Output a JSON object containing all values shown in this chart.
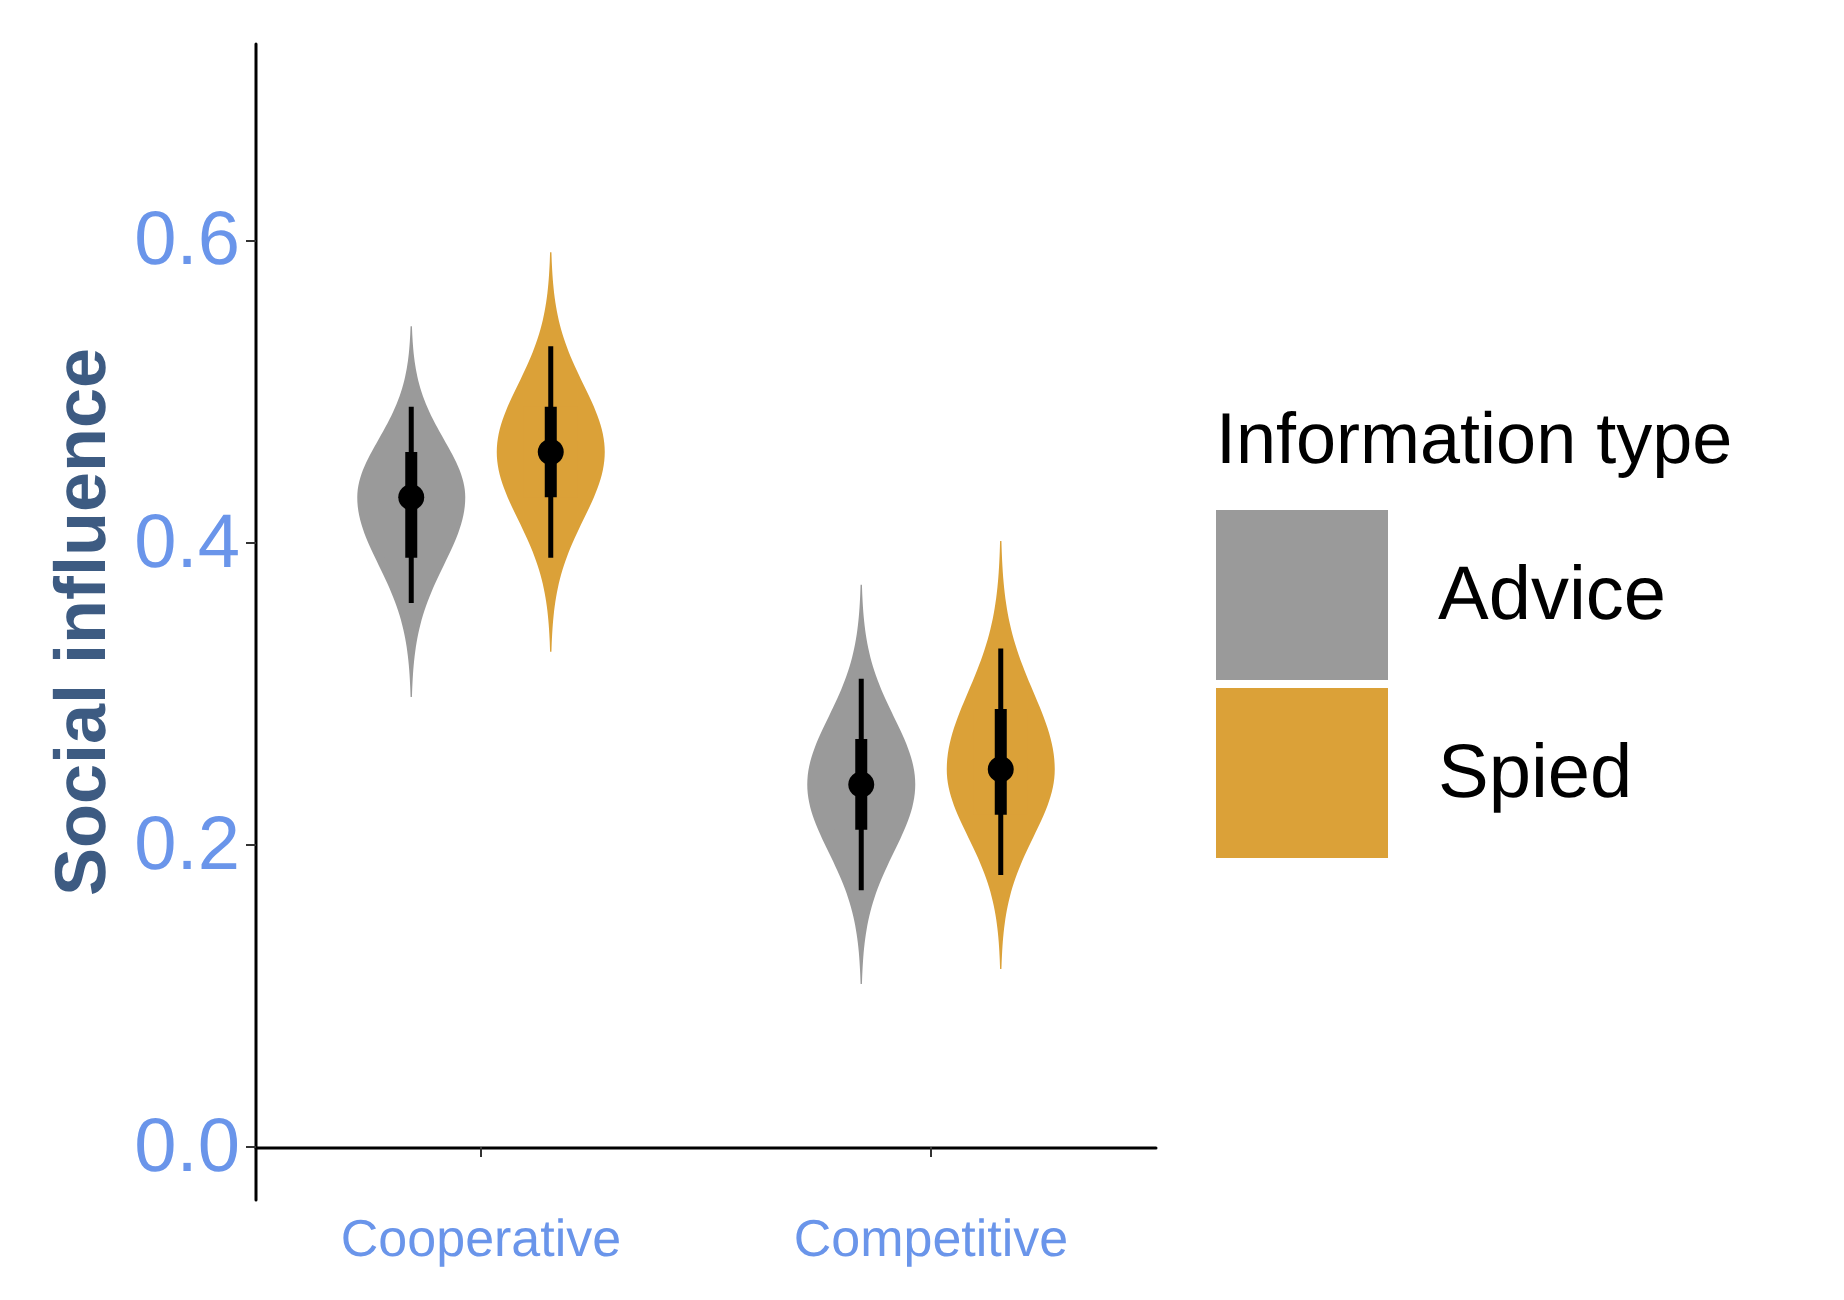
{
  "chart_data": {
    "type": "box",
    "ylabel": "Social influence",
    "legend_title": "Information type",
    "categories": [
      "Cooperative",
      "Competitive"
    ],
    "series": [
      {
        "name": "Advice",
        "color": "#9a9a9a",
        "boxes": [
          {
            "low": 0.36,
            "q1": 0.39,
            "median": 0.43,
            "q3": 0.46,
            "high": 0.49
          },
          {
            "low": 0.17,
            "q1": 0.21,
            "median": 0.24,
            "q3": 0.27,
            "high": 0.31
          }
        ]
      },
      {
        "name": "Spied",
        "color": "#dba138",
        "boxes": [
          {
            "low": 0.39,
            "q1": 0.43,
            "median": 0.46,
            "q3": 0.49,
            "high": 0.53
          },
          {
            "low": 0.18,
            "q1": 0.22,
            "median": 0.25,
            "q3": 0.29,
            "high": 0.33
          }
        ]
      }
    ],
    "ylim": [
      -0.035,
      0.73
    ],
    "yticks": [
      {
        "value": 0,
        "label": "0.0"
      },
      {
        "value": 0.2,
        "label": "0.2"
      },
      {
        "value": 0.4,
        "label": "0.4"
      },
      {
        "value": 0.6,
        "label": "0.6"
      }
    ],
    "legend": "right"
  }
}
